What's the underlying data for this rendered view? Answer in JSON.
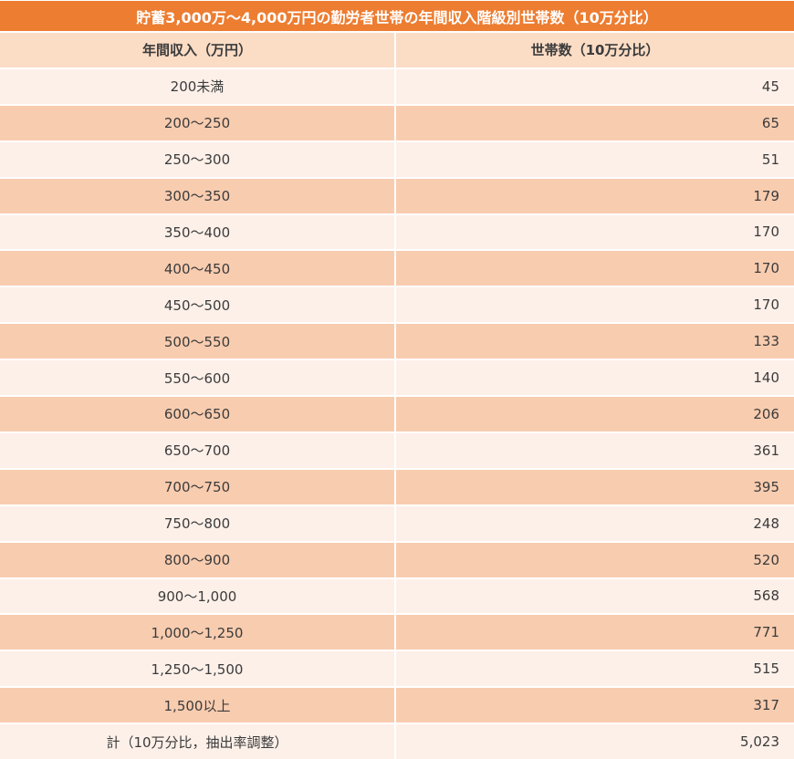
{
  "table": {
    "title": "貯蓄3,000万～4,000万円の勤労者世帯の年間収入階級別世帯数（10万分比）",
    "columns": {
      "income": "年間収入（万円）",
      "households": "世帯数（10万分比）"
    },
    "rows": [
      {
        "income": "200未満",
        "households": "45"
      },
      {
        "income": "200～250",
        "households": "65"
      },
      {
        "income": "250～300",
        "households": "51"
      },
      {
        "income": "300～350",
        "households": "179"
      },
      {
        "income": "350～400",
        "households": "170"
      },
      {
        "income": "400～450",
        "households": "170"
      },
      {
        "income": "450～500",
        "households": "170"
      },
      {
        "income": "500～550",
        "households": "133"
      },
      {
        "income": "550～600",
        "households": "140"
      },
      {
        "income": "600～650",
        "households": "206"
      },
      {
        "income": "650～700",
        "households": "361"
      },
      {
        "income": "700～750",
        "households": "395"
      },
      {
        "income": "750～800",
        "households": "248"
      },
      {
        "income": "800～900",
        "households": "520"
      },
      {
        "income": "900～1,000",
        "households": "568"
      },
      {
        "income": "1,000～1,250",
        "households": "771"
      },
      {
        "income": "1,250～1,500",
        "households": "515"
      },
      {
        "income": "1,500以上",
        "households": "317"
      },
      {
        "income": "計（10万分比，抽出率調整）",
        "households": "5,023"
      }
    ]
  },
  "chart_data": {
    "type": "table",
    "title": "貯蓄3,000万～4,000万円の勤労者世帯の年間収入階級別世帯数（10万分比）",
    "columns": [
      "年間収入（万円）",
      "世帯数（10万分比）"
    ],
    "categories": [
      "200未満",
      "200～250",
      "250～300",
      "300～350",
      "350～400",
      "400～450",
      "450～500",
      "500～550",
      "550～600",
      "600～650",
      "650～700",
      "700～750",
      "750～800",
      "800～900",
      "900～1,000",
      "1,000～1,250",
      "1,250～1,500",
      "1,500以上",
      "計（10万分比，抽出率調整）"
    ],
    "values": [
      45,
      65,
      51,
      179,
      170,
      170,
      170,
      133,
      140,
      206,
      361,
      395,
      248,
      520,
      568,
      771,
      515,
      317,
      5023
    ]
  },
  "colors": {
    "title_bar": "#ED7D31",
    "header_row": "#FBDCC5",
    "row_light": "#FDF0E9",
    "row_dark": "#F8CCAF",
    "text": "#3b3b3b",
    "title_text": "#ffffff"
  }
}
